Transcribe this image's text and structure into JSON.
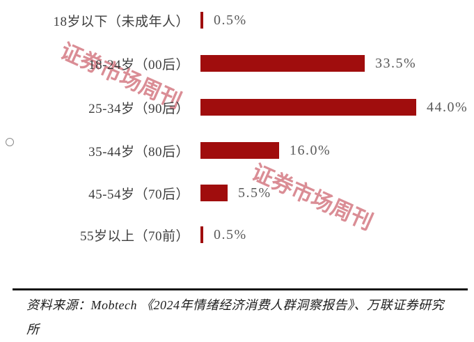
{
  "watermark": {
    "text": "证券市场周刊",
    "color": "#CD6771"
  },
  "chart_data": {
    "type": "bar",
    "orientation": "horizontal",
    "title": "",
    "xlabel": "",
    "ylabel": "",
    "categories": [
      "18岁以下（未成年人）",
      "18-24岁（00后）",
      "25-34岁（90后）",
      "35-44岁（80后）",
      "45-54岁（70后）",
      "55岁以上（70前）"
    ],
    "values": [
      0.5,
      33.5,
      44.0,
      16.0,
      5.5,
      0.5
    ],
    "value_labels": [
      "0.5%",
      "33.5%",
      "44.0%",
      "16.0%",
      "5.5%",
      "0.5%"
    ],
    "xlim": [
      0,
      47
    ],
    "grid": false,
    "legend": false,
    "bar_color": "#A00D0D",
    "category_label_color": "#3d3d3d",
    "value_label_color": "#595959"
  },
  "footer": {
    "source": "资料来源：Mobtech 《2024年情绪经济消费人群洞察报告》、万联证券研究所"
  }
}
